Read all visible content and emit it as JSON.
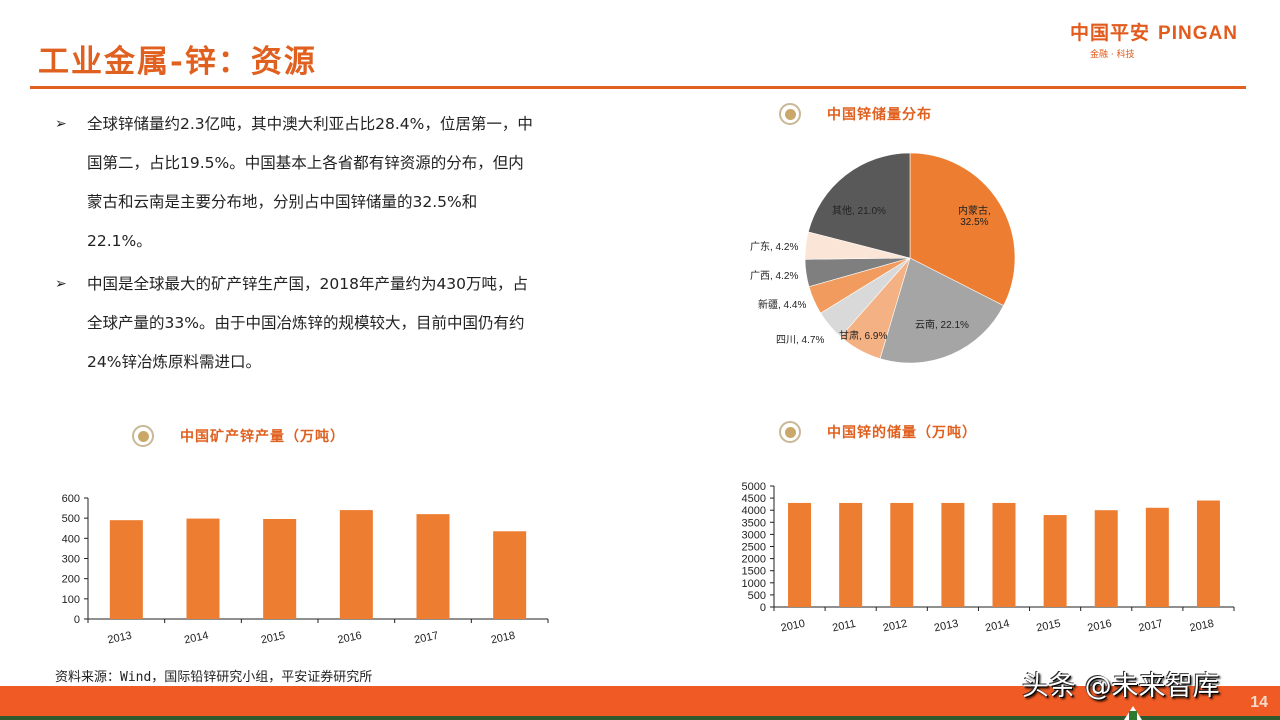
{
  "header": {
    "title": "工业金属-锌：资源",
    "logo_cn": "中国平安",
    "logo_en": "PINGAN",
    "logo_sub": "金融 · 科技"
  },
  "bullets": [
    {
      "icon": "arrow-bullet-icon",
      "glyph": "➢",
      "text": "全球锌储量约2.3亿吨，其中澳大利亚占比28.4%，位居第一，中国第二，占比19.5%。中国基本上各省都有锌资源的分布，但内蒙古和云南是主要分布地，分别占中国锌储量的32.5%和22.1%。"
    },
    {
      "icon": "arrow-bullet-icon",
      "glyph": "➢",
      "text": "中国是全球最大的矿产锌生产国，2018年产量约为430万吨，占全球产量的33%。由于中国冶炼锌的规模较大，目前中国仍有约24%锌冶炼原料需进口。"
    }
  ],
  "sections": {
    "pie_title": "中国锌储量分布",
    "production_title": "中国矿产锌产量（万吨）",
    "reserves_title": "中国锌的储量（万吨）"
  },
  "source": "资料来源：Wind，国际铅锌研究小组，平安证券研究所",
  "footer": {
    "watermark": "头条 @未来智库",
    "page_number": "14"
  },
  "colors": {
    "accent": "#e0601f",
    "bar": "#ed7d31",
    "footer": "#f05a24"
  },
  "chart_data": [
    {
      "type": "pie",
      "title": "中国锌储量分布",
      "categories": [
        "内蒙古",
        "云南",
        "甘肃",
        "四川",
        "新疆",
        "广西",
        "广东",
        "其他"
      ],
      "values": [
        32.5,
        22.1,
        6.9,
        4.7,
        4.4,
        4.2,
        4.2,
        21.0
      ],
      "labels": [
        "内蒙古, 32.5%",
        "云南, 22.1%",
        "甘肃, 6.9%",
        "四川, 4.7%",
        "新疆, 4.4%",
        "广西, 4.2%",
        "广东, 4.2%",
        "其他, 21.0%"
      ],
      "colors": [
        "#ed7d31",
        "#a5a5a5",
        "#f4b183",
        "#d9d9d9",
        "#f19c5e",
        "#7f7f7f",
        "#fbe5d6",
        "#595959"
      ],
      "unit": "%"
    },
    {
      "type": "bar",
      "title": "中国矿产锌产量（万吨）",
      "categories": [
        "2013",
        "2014",
        "2015",
        "2016",
        "2017",
        "2018"
      ],
      "values": [
        490,
        498,
        496,
        540,
        520,
        435
      ],
      "xlabel": "",
      "ylabel": "",
      "ylim": [
        0,
        600
      ],
      "yticks": [
        0,
        100,
        200,
        300,
        400,
        500,
        600
      ],
      "grid": false
    },
    {
      "type": "bar",
      "title": "中国锌的储量（万吨）",
      "categories": [
        "2010",
        "2011",
        "2012",
        "2013",
        "2014",
        "2015",
        "2016",
        "2017",
        "2018"
      ],
      "values": [
        4300,
        4300,
        4300,
        4300,
        4300,
        3800,
        4000,
        4100,
        4400
      ],
      "xlabel": "",
      "ylabel": "",
      "ylim": [
        0,
        5000
      ],
      "yticks": [
        0,
        500,
        1000,
        1500,
        2000,
        2500,
        3000,
        3500,
        4000,
        4500,
        5000
      ],
      "grid": false
    }
  ]
}
